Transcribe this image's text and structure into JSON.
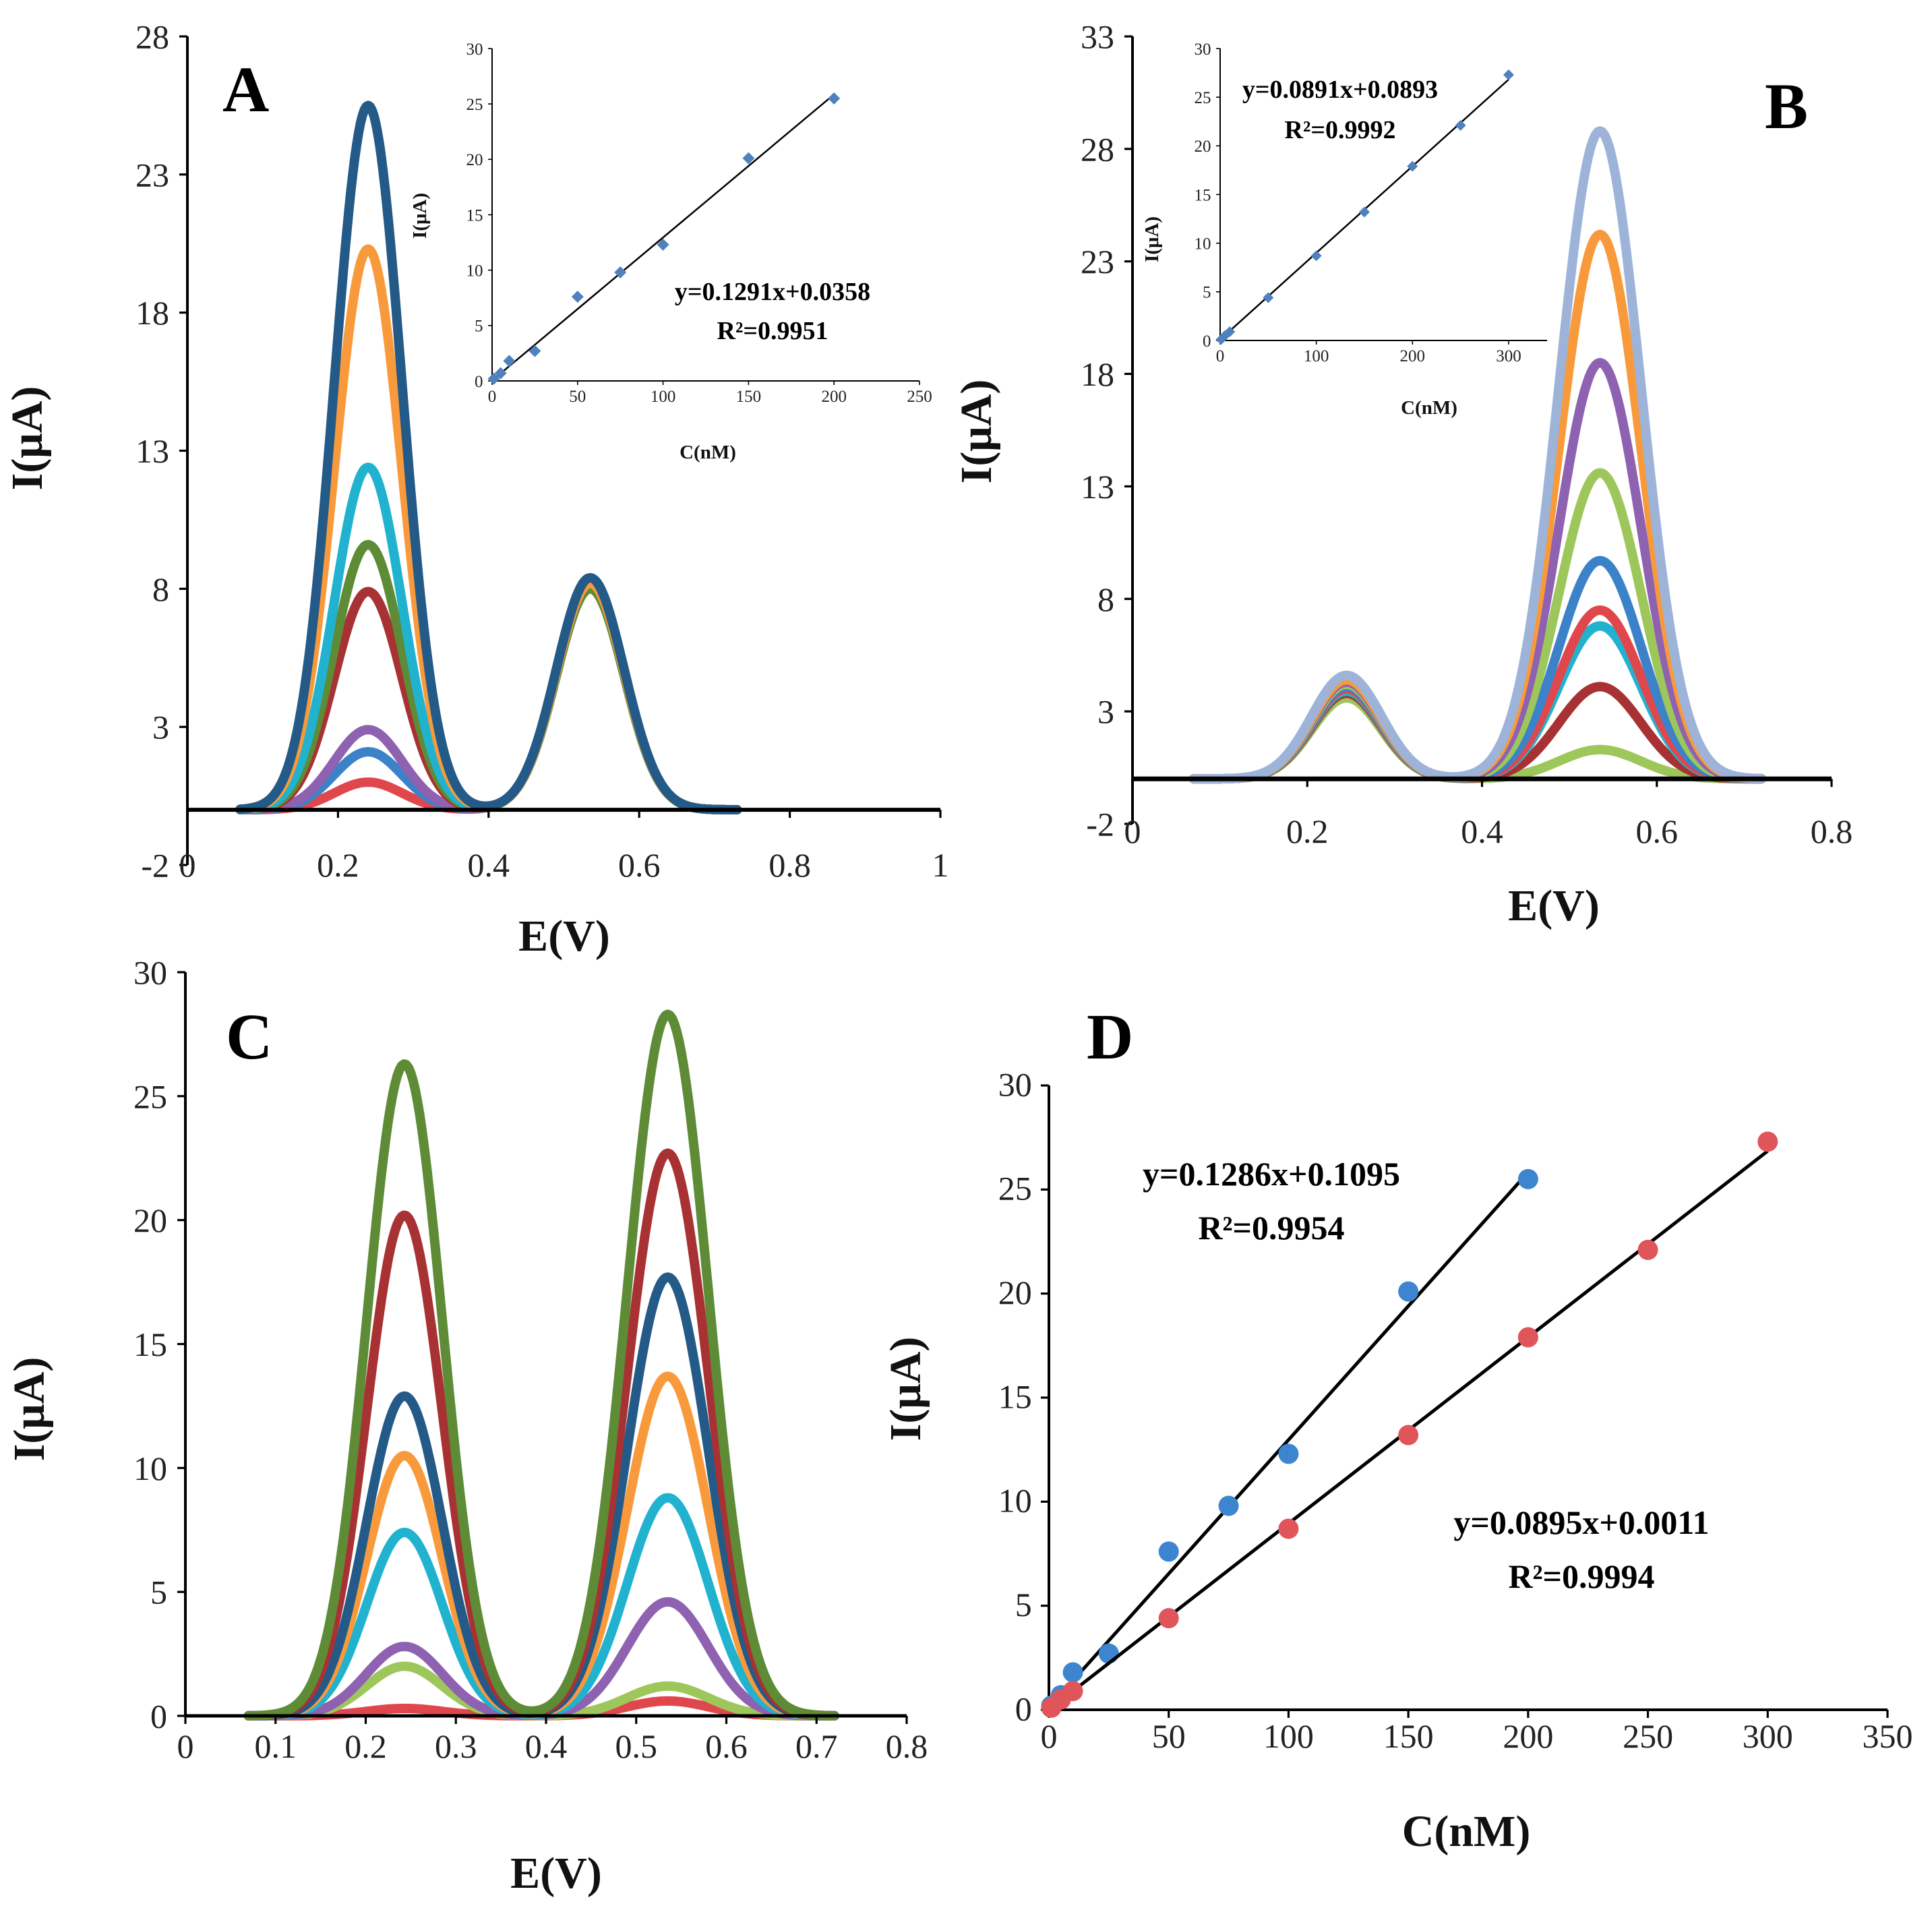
{
  "colors": {
    "red": "#e0474c",
    "pale_green": "#9dc75a",
    "purple": "#8e62b0",
    "blue": "#3b82c9",
    "cyan": "#21b2cf",
    "orange": "#f89a3c",
    "dark_red": "#a83233",
    "green": "#5e8c36",
    "navy": "#245a87",
    "light_blue": "#9db4d8",
    "dot_blue": "#3d86cf",
    "dot_red": "#e05559",
    "inset_point": "#4f81bd"
  },
  "chart_data": [
    {
      "id": "A",
      "type": "line",
      "panel_label": "A",
      "xlabel": "E(V)",
      "ylabel": "I(μA)",
      "xlim": [
        0,
        1
      ],
      "ylim": [
        -2,
        28
      ],
      "xticks": [
        "0",
        "0.2",
        "0.4",
        "0.6",
        "0.8",
        "1"
      ],
      "yticks": [
        "-2",
        "3",
        "8",
        "13",
        "18",
        "23",
        "28"
      ],
      "xtick_values": [
        0,
        0.2,
        0.4,
        0.6,
        0.8,
        1
      ],
      "ytick_values": [
        -2,
        3,
        8,
        13,
        18,
        23,
        28
      ],
      "x_range": [
        0.07,
        0.73
      ],
      "peaks": [
        {
          "center": 0.24,
          "width": 0.045
        },
        {
          "center": 0.535,
          "width": 0.045
        }
      ],
      "series": [
        {
          "color": "red",
          "heights": [
            1.0,
            8.1
          ]
        },
        {
          "color": "blue",
          "heights": [
            2.1,
            8.2
          ]
        },
        {
          "color": "purple",
          "heights": [
            2.9,
            8.3
          ]
        },
        {
          "color": "dark_red",
          "heights": [
            7.9,
            8.2
          ]
        },
        {
          "color": "green",
          "heights": [
            9.6,
            8.0
          ]
        },
        {
          "color": "cyan",
          "heights": [
            12.4,
            8.3
          ]
        },
        {
          "color": "orange",
          "heights": [
            20.3,
            8.2
          ]
        },
        {
          "color": "navy",
          "heights": [
            25.5,
            8.4
          ]
        }
      ],
      "inset": {
        "xlabel": "C(nM)",
        "ylabel": "I(μA)",
        "xlim": [
          0,
          250
        ],
        "ylim": [
          0,
          30
        ],
        "xticks": [
          "0",
          "50",
          "100",
          "150",
          "200",
          "250"
        ],
        "yticks": [
          "0",
          "5",
          "10",
          "15",
          "20",
          "25",
          "30"
        ],
        "xtick_values": [
          0,
          50,
          100,
          150,
          200,
          250
        ],
        "ytick_values": [
          0,
          5,
          10,
          15,
          20,
          25,
          30
        ],
        "x": [
          1,
          5,
          10,
          25,
          50,
          75,
          100,
          150,
          200
        ],
        "y": [
          0.2,
          0.7,
          1.8,
          2.7,
          7.6,
          9.8,
          12.3,
          20.1,
          25.5
        ],
        "fit": {
          "slope": 0.1291,
          "intercept": 0.0358,
          "range": [
            0,
            200
          ]
        },
        "equation": "y=0.1291x+0.0358",
        "r2": "R²=0.9951"
      }
    },
    {
      "id": "B",
      "type": "line",
      "panel_label": "B",
      "xlabel": "E(V)",
      "ylabel": "I(μA)",
      "xlim": [
        0,
        0.8
      ],
      "ylim": [
        -2,
        33
      ],
      "xticks": [
        "0",
        "0.2",
        "0.4",
        "0.6",
        "0.8"
      ],
      "yticks": [
        "-2",
        "3",
        "8",
        "13",
        "18",
        "23",
        "28",
        "33"
      ],
      "xtick_values": [
        0,
        0.2,
        0.4,
        0.6,
        0.8
      ],
      "ytick_values": [
        -2,
        3,
        8,
        13,
        18,
        23,
        28,
        33
      ],
      "x_range": [
        0.07,
        0.72
      ],
      "peaks": [
        {
          "center": 0.245,
          "width": 0.04
        },
        {
          "center": 0.535,
          "width": 0.047
        }
      ],
      "series": [
        {
          "color": "pale_green",
          "heights": [
            3.6,
            1.3
          ]
        },
        {
          "color": "dark_red",
          "heights": [
            3.8,
            4.1
          ]
        },
        {
          "color": "cyan",
          "heights": [
            3.9,
            6.8
          ]
        },
        {
          "color": "red",
          "heights": [
            4.0,
            7.5
          ]
        },
        {
          "color": "blue",
          "heights": [
            4.1,
            9.7
          ]
        },
        {
          "color": "pale_green",
          "heights": [
            4.2,
            13.6
          ]
        },
        {
          "color": "purple",
          "heights": [
            4.3,
            18.5
          ]
        },
        {
          "color": "orange",
          "heights": [
            4.4,
            24.2
          ]
        },
        {
          "color": "light_blue",
          "heights": [
            4.6,
            28.8
          ]
        }
      ],
      "inset": {
        "xlabel": "C(nM)",
        "ylabel": "I(μA)",
        "xlim": [
          0,
          340
        ],
        "ylim": [
          0,
          30
        ],
        "xticks": [
          "0",
          "100",
          "200",
          "300"
        ],
        "yticks": [
          "0",
          "5",
          "10",
          "15",
          "20",
          "25",
          "30"
        ],
        "xtick_values": [
          0,
          100,
          200,
          300
        ],
        "ytick_values": [
          0,
          5,
          10,
          15,
          20,
          25,
          30
        ],
        "x": [
          1,
          5,
          10,
          50,
          100,
          150,
          200,
          250,
          300
        ],
        "y": [
          0.1,
          0.5,
          0.9,
          4.4,
          8.7,
          13.2,
          17.9,
          22.1,
          27.3
        ],
        "fit": {
          "slope": 0.0891,
          "intercept": 0.0893,
          "range": [
            0,
            300
          ]
        },
        "equation": "y=0.0891x+0.0893",
        "r2": "R²=0.9992"
      }
    },
    {
      "id": "C",
      "type": "line",
      "panel_label": "C",
      "xlabel": "E(V)",
      "ylabel": "I(μA)",
      "xlim": [
        0,
        0.8
      ],
      "ylim": [
        0,
        30
      ],
      "xticks": [
        "0",
        "0.1",
        "0.2",
        "0.3",
        "0.4",
        "0.5",
        "0.6",
        "0.7",
        "0.8"
      ],
      "yticks": [
        "0",
        "5",
        "10",
        "15",
        "20",
        "25",
        "30"
      ],
      "xtick_values": [
        0,
        0.1,
        0.2,
        0.3,
        0.4,
        0.5,
        0.6,
        0.7,
        0.8
      ],
      "ytick_values": [
        0,
        5,
        10,
        15,
        20,
        25,
        30
      ],
      "x_range": [
        0.07,
        0.72
      ],
      "peaks": [
        {
          "center": 0.243,
          "width": 0.042
        },
        {
          "center": 0.535,
          "width": 0.045
        }
      ],
      "series": [
        {
          "color": "red",
          "heights": [
            0.3,
            0.6
          ]
        },
        {
          "color": "pale_green",
          "heights": [
            2.0,
            1.2
          ]
        },
        {
          "color": "purple",
          "heights": [
            2.8,
            4.6
          ]
        },
        {
          "color": "cyan",
          "heights": [
            7.4,
            8.8
          ]
        },
        {
          "color": "orange",
          "heights": [
            10.5,
            13.7
          ]
        },
        {
          "color": "navy",
          "heights": [
            12.9,
            17.7
          ]
        },
        {
          "color": "dark_red",
          "heights": [
            20.2,
            22.7
          ]
        },
        {
          "color": "green",
          "heights": [
            26.3,
            28.3
          ]
        }
      ]
    },
    {
      "id": "D",
      "type": "scatter",
      "panel_label": "D",
      "xlabel": "C(nM)",
      "ylabel": "I(μA)",
      "xlim": [
        0,
        350
      ],
      "ylim": [
        0,
        30
      ],
      "xticks": [
        "0",
        "50",
        "100",
        "150",
        "200",
        "250",
        "300",
        "350"
      ],
      "yticks": [
        "0",
        "5",
        "10",
        "15",
        "20",
        "25",
        "30"
      ],
      "xtick_values": [
        0,
        50,
        100,
        150,
        200,
        250,
        300,
        350
      ],
      "ytick_values": [
        0,
        5,
        10,
        15,
        20,
        25,
        30
      ],
      "series": [
        {
          "color": "dot_blue",
          "x": [
            1,
            5,
            10,
            25,
            50,
            75,
            100,
            150,
            200
          ],
          "y": [
            0.2,
            0.7,
            1.8,
            2.7,
            7.6,
            9.8,
            12.3,
            20.1,
            25.5
          ],
          "fit": {
            "slope": 0.1286,
            "intercept": 0.1095,
            "range": [
              0,
              200
            ]
          },
          "equation": "y=0.1286x+0.1095",
          "r2": "R²=0.9954"
        },
        {
          "color": "dot_red",
          "x": [
            1,
            5,
            10,
            50,
            100,
            150,
            200,
            250,
            300
          ],
          "y": [
            0.1,
            0.5,
            0.9,
            4.4,
            8.7,
            13.2,
            17.9,
            22.1,
            27.3
          ],
          "fit": {
            "slope": 0.0895,
            "intercept": 0.0011,
            "range": [
              0,
              300
            ]
          },
          "equation": "y=0.0895x+0.0011",
          "r2": "R²=0.9994"
        }
      ]
    }
  ]
}
